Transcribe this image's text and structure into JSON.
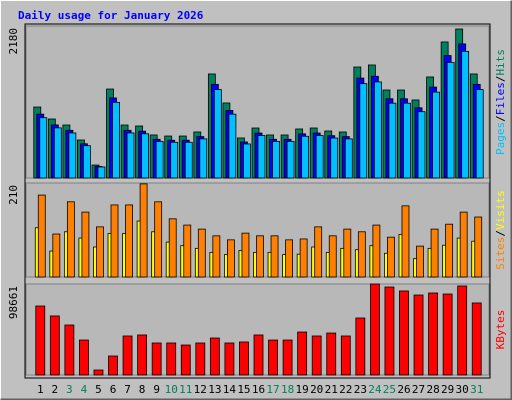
{
  "chart_data": [
    {
      "type": "bar",
      "title": "Daily usage for January 2026",
      "title_color": "#0000ff",
      "ylim": [
        0,
        2180
      ],
      "yticks": [
        2180
      ],
      "legend_separator": "/",
      "series": [
        {
          "name": "Hits",
          "color": "#00805c",
          "values": [
            1018,
            846,
            760,
            545,
            186,
            1276,
            760,
            746,
            617,
            602,
            602,
            660,
            1492,
            1076,
            574,
            717,
            617,
            617,
            703,
            717,
            674,
            660,
            1592,
            1621,
            1262,
            1262,
            1119,
            1449,
            1951,
            2137,
            1492
          ]
        },
        {
          "name": "Files",
          "color": "#0000ff",
          "values": [
            916,
            761,
            684,
            491,
            167,
            1148,
            684,
            671,
            555,
            542,
            542,
            594,
            1343,
            968,
            517,
            645,
            555,
            555,
            633,
            645,
            607,
            594,
            1433,
            1459,
            1136,
            1136,
            1007,
            1304,
            1756,
            1923,
            1343
          ]
        },
        {
          "name": "Pages",
          "color": "#00c0ff",
          "values": [
            865,
            719,
            646,
            463,
            158,
            1085,
            646,
            634,
            524,
            512,
            512,
            561,
            1268,
            915,
            488,
            609,
            524,
            524,
            598,
            609,
            573,
            561,
            1353,
            1378,
            1073,
            1073,
            951,
            1232,
            1658,
            1816,
            1268
          ]
        }
      ]
    },
    {
      "type": "bar",
      "ylim": [
        0,
        210
      ],
      "yticks": [
        210
      ],
      "legend_separator": "/",
      "series": [
        {
          "name": "Visits",
          "color": "#ffff00",
          "values": [
            110,
            58,
            101,
            87,
            67,
            97,
            97,
            125,
            101,
            78,
            70,
            64,
            55,
            50,
            59,
            55,
            55,
            50,
            51,
            67,
            55,
            64,
            61,
            70,
            53,
            95,
            41,
            64,
            71,
            87,
            80
          ]
        },
        {
          "name": "Sites",
          "color": "#ff8000",
          "values": [
            183,
            96,
            168,
            145,
            112,
            161,
            161,
            208,
            168,
            130,
            116,
            107,
            92,
            83,
            98,
            92,
            92,
            83,
            85,
            112,
            92,
            107,
            101,
            116,
            89,
            159,
            69,
            107,
            118,
            145,
            134
          ]
        }
      ]
    },
    {
      "type": "bar",
      "ylim": [
        0,
        98661
      ],
      "yticks": [
        98661
      ],
      "categories": [
        "1",
        "2",
        "3",
        "4",
        "5",
        "6",
        "7",
        "8",
        "9",
        "10",
        "11",
        "12",
        "13",
        "14",
        "15",
        "16",
        "17",
        "18",
        "19",
        "20",
        "21",
        "22",
        "23",
        "24",
        "25",
        "26",
        "27",
        "28",
        "29",
        "30",
        "31"
      ],
      "category_colors": [
        "#000000",
        "#000000",
        "#00805c",
        "#00805c",
        "#000000",
        "#000000",
        "#000000",
        "#000000",
        "#000000",
        "#00805c",
        "#00805c",
        "#000000",
        "#000000",
        "#000000",
        "#000000",
        "#000000",
        "#00805c",
        "#00805c",
        "#000000",
        "#000000",
        "#000000",
        "#000000",
        "#000000",
        "#00805c",
        "#00805c",
        "#000000",
        "#000000",
        "#000000",
        "#000000",
        "#000000",
        "#00805c"
      ],
      "series": [
        {
          "name": "KBytes",
          "color": "#ff0000",
          "values": [
            74800,
            64000,
            54200,
            37900,
            5400,
            20600,
            42300,
            43400,
            34700,
            34700,
            32500,
            34700,
            40100,
            34700,
            35800,
            43400,
            37900,
            37900,
            46600,
            42300,
            45500,
            42300,
            61800,
            98661,
            95400,
            91100,
            86700,
            88900,
            87800,
            96500,
            78100
          ]
        }
      ]
    }
  ]
}
